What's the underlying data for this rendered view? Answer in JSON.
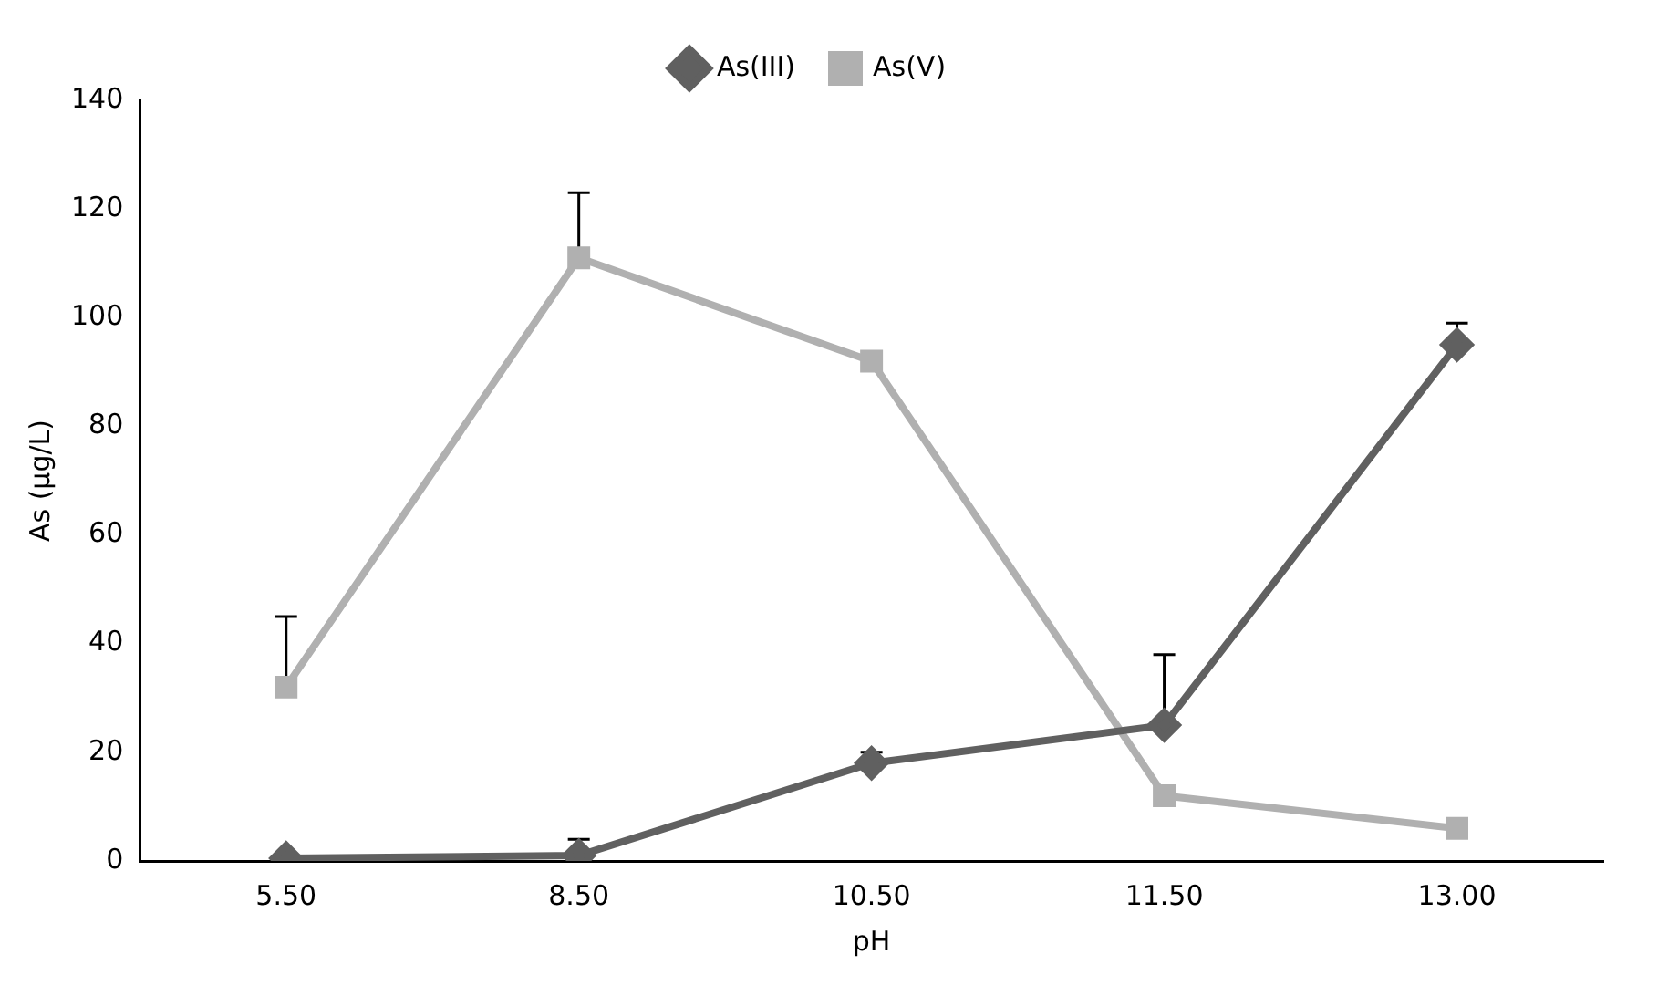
{
  "chart_data": {
    "type": "line",
    "xlabel": "pH",
    "ylabel": "As (µg/L)",
    "categories": [
      "5.50",
      "8.50",
      "10.50",
      "11.50",
      "13.00"
    ],
    "ylim": [
      0,
      140
    ],
    "yticks": [
      0,
      20,
      40,
      60,
      80,
      100,
      120,
      140
    ],
    "grid": false,
    "legend": "top",
    "series": [
      {
        "name": "As(III)",
        "color": "#606060",
        "marker": "diamond",
        "values": [
          0.5,
          1,
          18,
          25,
          95
        ],
        "errors": [
          null,
          [
            1,
            4
          ],
          [
            18,
            20
          ],
          [
            25,
            38
          ],
          [
            95,
            99
          ]
        ]
      },
      {
        "name": "As(V)",
        "color": "#b0b0b0",
        "marker": "square",
        "values": [
          32,
          111,
          92,
          12,
          6
        ],
        "errors": [
          [
            32,
            45
          ],
          [
            111,
            123
          ],
          null,
          null,
          null
        ]
      }
    ]
  }
}
